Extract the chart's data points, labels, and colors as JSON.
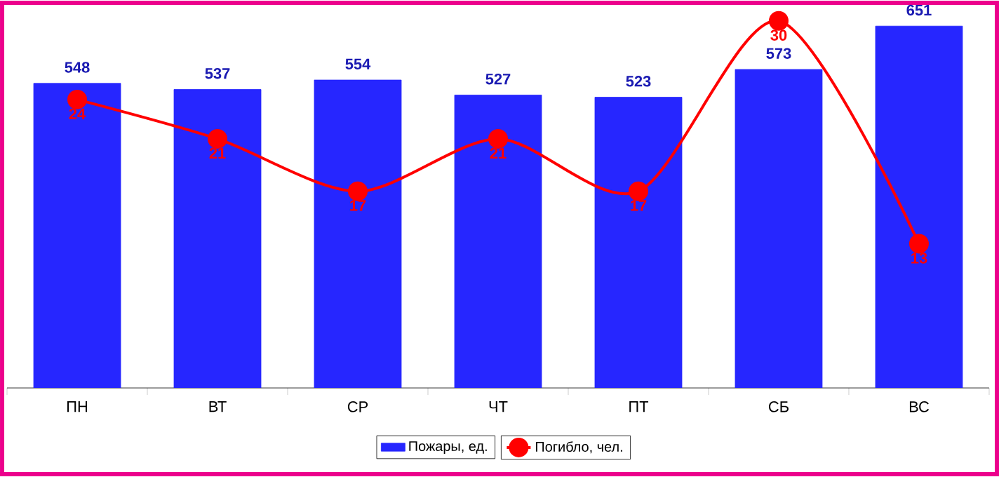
{
  "chart_data": {
    "type": "bar",
    "categories": [
      "ПН",
      "ВТ",
      "СР",
      "ЧТ",
      "ПТ",
      "СБ",
      "ВС"
    ],
    "series": [
      {
        "name": "Пожары, ед.",
        "type": "bar",
        "color": "#2626ff",
        "values": [
          548,
          537,
          554,
          527,
          523,
          573,
          651
        ]
      },
      {
        "name": "Погибло, чел.",
        "type": "line",
        "axis": "y2",
        "color": "#ff0000",
        "values": [
          24,
          21,
          17,
          21,
          17,
          30,
          13
        ]
      }
    ],
    "ylim": [
      0,
      684
    ],
    "y2lim": [
      2,
      31
    ],
    "tick_labels": "x",
    "data_labels": true,
    "legend": "bottom",
    "marker": "circle",
    "grid": false
  }
}
